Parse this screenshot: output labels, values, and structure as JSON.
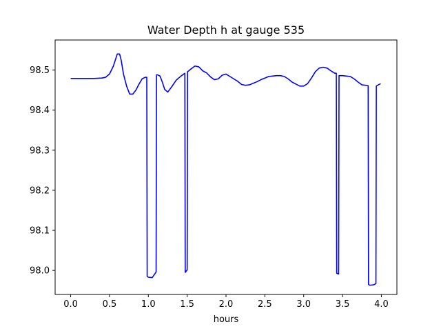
{
  "chart_data": {
    "type": "line",
    "title": "Water Depth h at gauge 535",
    "xlabel": "hours",
    "ylabel": "",
    "xlim": [
      -0.2,
      4.2
    ],
    "ylim": [
      97.94,
      98.575
    ],
    "grid": false,
    "xticks": [
      0.0,
      0.5,
      1.0,
      1.5,
      2.0,
      2.5,
      3.0,
      3.5,
      4.0
    ],
    "xtick_labels": [
      "0.0",
      "0.5",
      "1.0",
      "1.5",
      "2.0",
      "2.5",
      "3.0",
      "3.5",
      "4.0"
    ],
    "yticks": [
      98.0,
      98.1,
      98.2,
      98.3,
      98.4,
      98.5
    ],
    "ytick_labels": [
      "98.0",
      "98.1",
      "98.2",
      "98.3",
      "98.4",
      "98.5"
    ],
    "series": [
      {
        "color": "#0000ff",
        "x": [
          0.0,
          0.1,
          0.2,
          0.3,
          0.4,
          0.45,
          0.5,
          0.55,
          0.6,
          0.63,
          0.65,
          0.68,
          0.72,
          0.76,
          0.8,
          0.84,
          0.88,
          0.92,
          0.96,
          0.98,
          0.985,
          1.0,
          1.05,
          1.1,
          1.105,
          1.12,
          1.15,
          1.18,
          1.21,
          1.25,
          1.3,
          1.36,
          1.42,
          1.47,
          1.475,
          1.5,
          1.505,
          1.52,
          1.55,
          1.6,
          1.65,
          1.7,
          1.75,
          1.8,
          1.85,
          1.9,
          1.95,
          2.0,
          2.05,
          2.1,
          2.15,
          2.2,
          2.25,
          2.3,
          2.35,
          2.4,
          2.45,
          2.5,
          2.55,
          2.6,
          2.65,
          2.7,
          2.75,
          2.8,
          2.85,
          2.9,
          2.95,
          3.0,
          3.05,
          3.1,
          3.15,
          3.2,
          3.25,
          3.3,
          3.35,
          3.4,
          3.42,
          3.425,
          3.45,
          3.455,
          3.48,
          3.5,
          3.55,
          3.6,
          3.65,
          3.7,
          3.75,
          3.8,
          3.83,
          3.835,
          3.85,
          3.9,
          3.93,
          3.935,
          3.96,
          3.99
        ],
        "y": [
          98.479,
          98.479,
          98.479,
          98.479,
          98.48,
          98.482,
          98.49,
          98.51,
          98.54,
          98.54,
          98.525,
          98.49,
          98.46,
          98.44,
          98.44,
          98.45,
          98.465,
          98.478,
          98.482,
          98.482,
          97.985,
          97.983,
          97.982,
          97.996,
          98.488,
          98.488,
          98.485,
          98.47,
          98.452,
          98.445,
          98.458,
          98.475,
          98.485,
          98.492,
          97.995,
          98.001,
          98.496,
          98.498,
          98.503,
          98.51,
          98.508,
          98.498,
          98.493,
          98.483,
          98.476,
          98.478,
          98.487,
          98.49,
          98.484,
          98.478,
          98.472,
          98.464,
          98.462,
          98.463,
          98.467,
          98.471,
          98.476,
          98.48,
          98.484,
          98.485,
          98.486,
          98.486,
          98.484,
          98.478,
          98.47,
          98.465,
          98.46,
          98.46,
          98.466,
          98.48,
          98.496,
          98.505,
          98.507,
          98.505,
          98.498,
          98.492,
          98.492,
          97.993,
          97.991,
          98.486,
          98.486,
          98.486,
          98.485,
          98.484,
          98.478,
          98.47,
          98.463,
          98.462,
          98.461,
          97.965,
          97.963,
          97.964,
          97.967,
          98.46,
          98.463,
          98.466
        ]
      }
    ]
  }
}
